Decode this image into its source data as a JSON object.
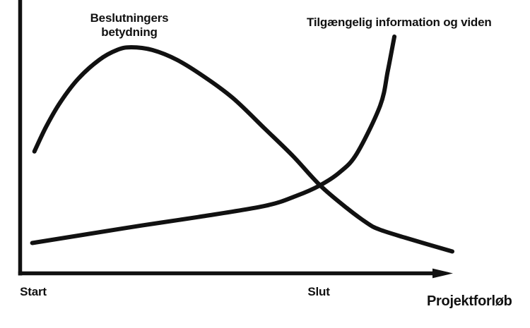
{
  "figure": {
    "background": "#ffffff",
    "ink_color": "#111111"
  },
  "labels": {
    "decision_line1": "Beslutningers",
    "decision_line2": "betydning",
    "information": "Tilgængelig information og viden",
    "x_axis": "Projektforløb"
  },
  "chart_data": {
    "type": "line",
    "title": "",
    "xlabel": "Projektforløb",
    "ylabel": "",
    "x_axis_kind": "qualitative project timeline (t: 0 = origin, 1 = arrow tip)",
    "y_axis_kind": "qualitative relative level (v: 0 = baseline, 1 = top), no ticks",
    "grid": false,
    "legend": "inline curve labels",
    "x_ticks": [
      {
        "label": "Start",
        "t": 0.031
      },
      {
        "label": "Slut",
        "t": 0.691
      }
    ],
    "series": [
      {
        "name": "Beslutningers betydning",
        "points": [
          [
            0.033,
            0.446
          ],
          [
            0.06,
            0.536
          ],
          [
            0.093,
            0.626
          ],
          [
            0.134,
            0.711
          ],
          [
            0.183,
            0.781
          ],
          [
            0.224,
            0.817
          ],
          [
            0.257,
            0.827
          ],
          [
            0.306,
            0.817
          ],
          [
            0.363,
            0.781
          ],
          [
            0.428,
            0.717
          ],
          [
            0.494,
            0.639
          ],
          [
            0.567,
            0.528
          ],
          [
            0.632,
            0.428
          ],
          [
            0.694,
            0.322
          ],
          [
            0.755,
            0.24
          ],
          [
            0.804,
            0.183
          ],
          [
            0.832,
            0.16
          ],
          [
            0.894,
            0.129
          ],
          [
            1.0,
            0.08
          ]
        ]
      },
      {
        "name": "Tilgængelig information og viden",
        "points": [
          [
            0.028,
            0.111
          ],
          [
            0.15,
            0.142
          ],
          [
            0.281,
            0.175
          ],
          [
            0.412,
            0.206
          ],
          [
            0.567,
            0.247
          ],
          [
            0.64,
            0.284
          ],
          [
            0.694,
            0.322
          ],
          [
            0.739,
            0.369
          ],
          [
            0.779,
            0.438
          ],
          [
            0.833,
            0.613
          ],
          [
            0.851,
            0.742
          ],
          [
            0.866,
            0.866
          ]
        ]
      }
    ]
  }
}
